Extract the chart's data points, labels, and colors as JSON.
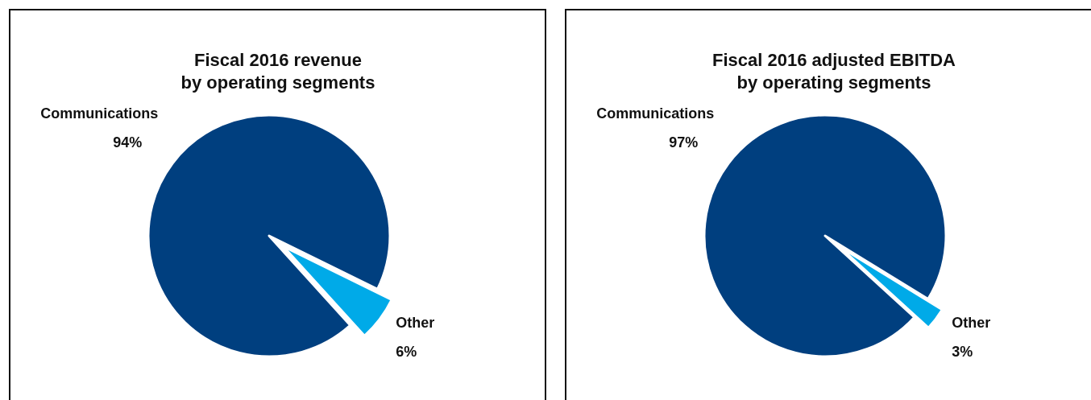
{
  "chart_data": [
    {
      "type": "pie",
      "title": "Fiscal 2016 revenue\nby operating segments",
      "categories": [
        "Communications",
        "Other"
      ],
      "values": [
        94,
        6
      ],
      "colors": [
        "#003f7f",
        "#00aae8"
      ],
      "value_labels": [
        "94%",
        "6%"
      ]
    },
    {
      "type": "pie",
      "title": "Fiscal 2016 adjusted EBITDA\nby operating segments",
      "categories": [
        "Communications",
        "Other"
      ],
      "values": [
        97,
        3
      ],
      "colors": [
        "#003f7f",
        "#00aae8"
      ],
      "value_labels": [
        "97%",
        "3%"
      ]
    }
  ]
}
